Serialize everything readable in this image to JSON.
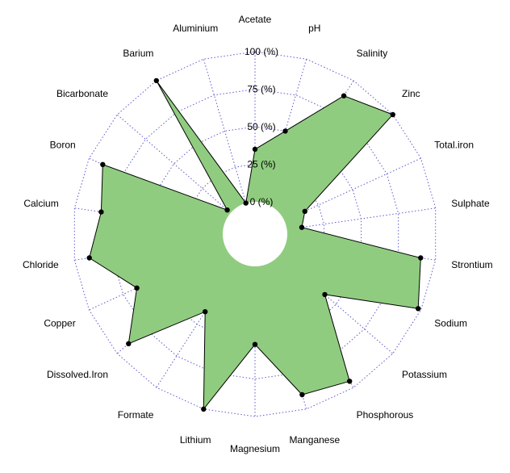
{
  "chart_data": {
    "type": "radar",
    "title": "",
    "axes": [
      "Acetate",
      "pH",
      "Salinity",
      "Zinc",
      "Total.iron",
      "Sulphate",
      "Strontium",
      "Sodium",
      "Potassium",
      "Phosphorous",
      "Manganese",
      "Magnesium",
      "Lithium",
      "Formate",
      "Dissolved.Iron",
      "Copper",
      "Chloride",
      "Calcium",
      "Boron",
      "Bicarbonate",
      "Barium",
      "Aluminium"
    ],
    "values": [
      35,
      50,
      88,
      100,
      15,
      10,
      90,
      98,
      40,
      95,
      90,
      52,
      100,
      40,
      90,
      65,
      90,
      82,
      90,
      3,
      100,
      0
    ],
    "ticks": [
      0,
      25,
      50,
      75,
      100
    ],
    "tick_labels": [
      "0 (%)",
      "25 (%)",
      "50 (%)",
      "75 (%)",
      "100 (%)"
    ],
    "ylim": [
      0,
      100
    ],
    "grid": true,
    "colors": {
      "fill": "#90cc80",
      "outline": "#000000",
      "points": "#000000",
      "grid": "#5c5ccf"
    }
  }
}
